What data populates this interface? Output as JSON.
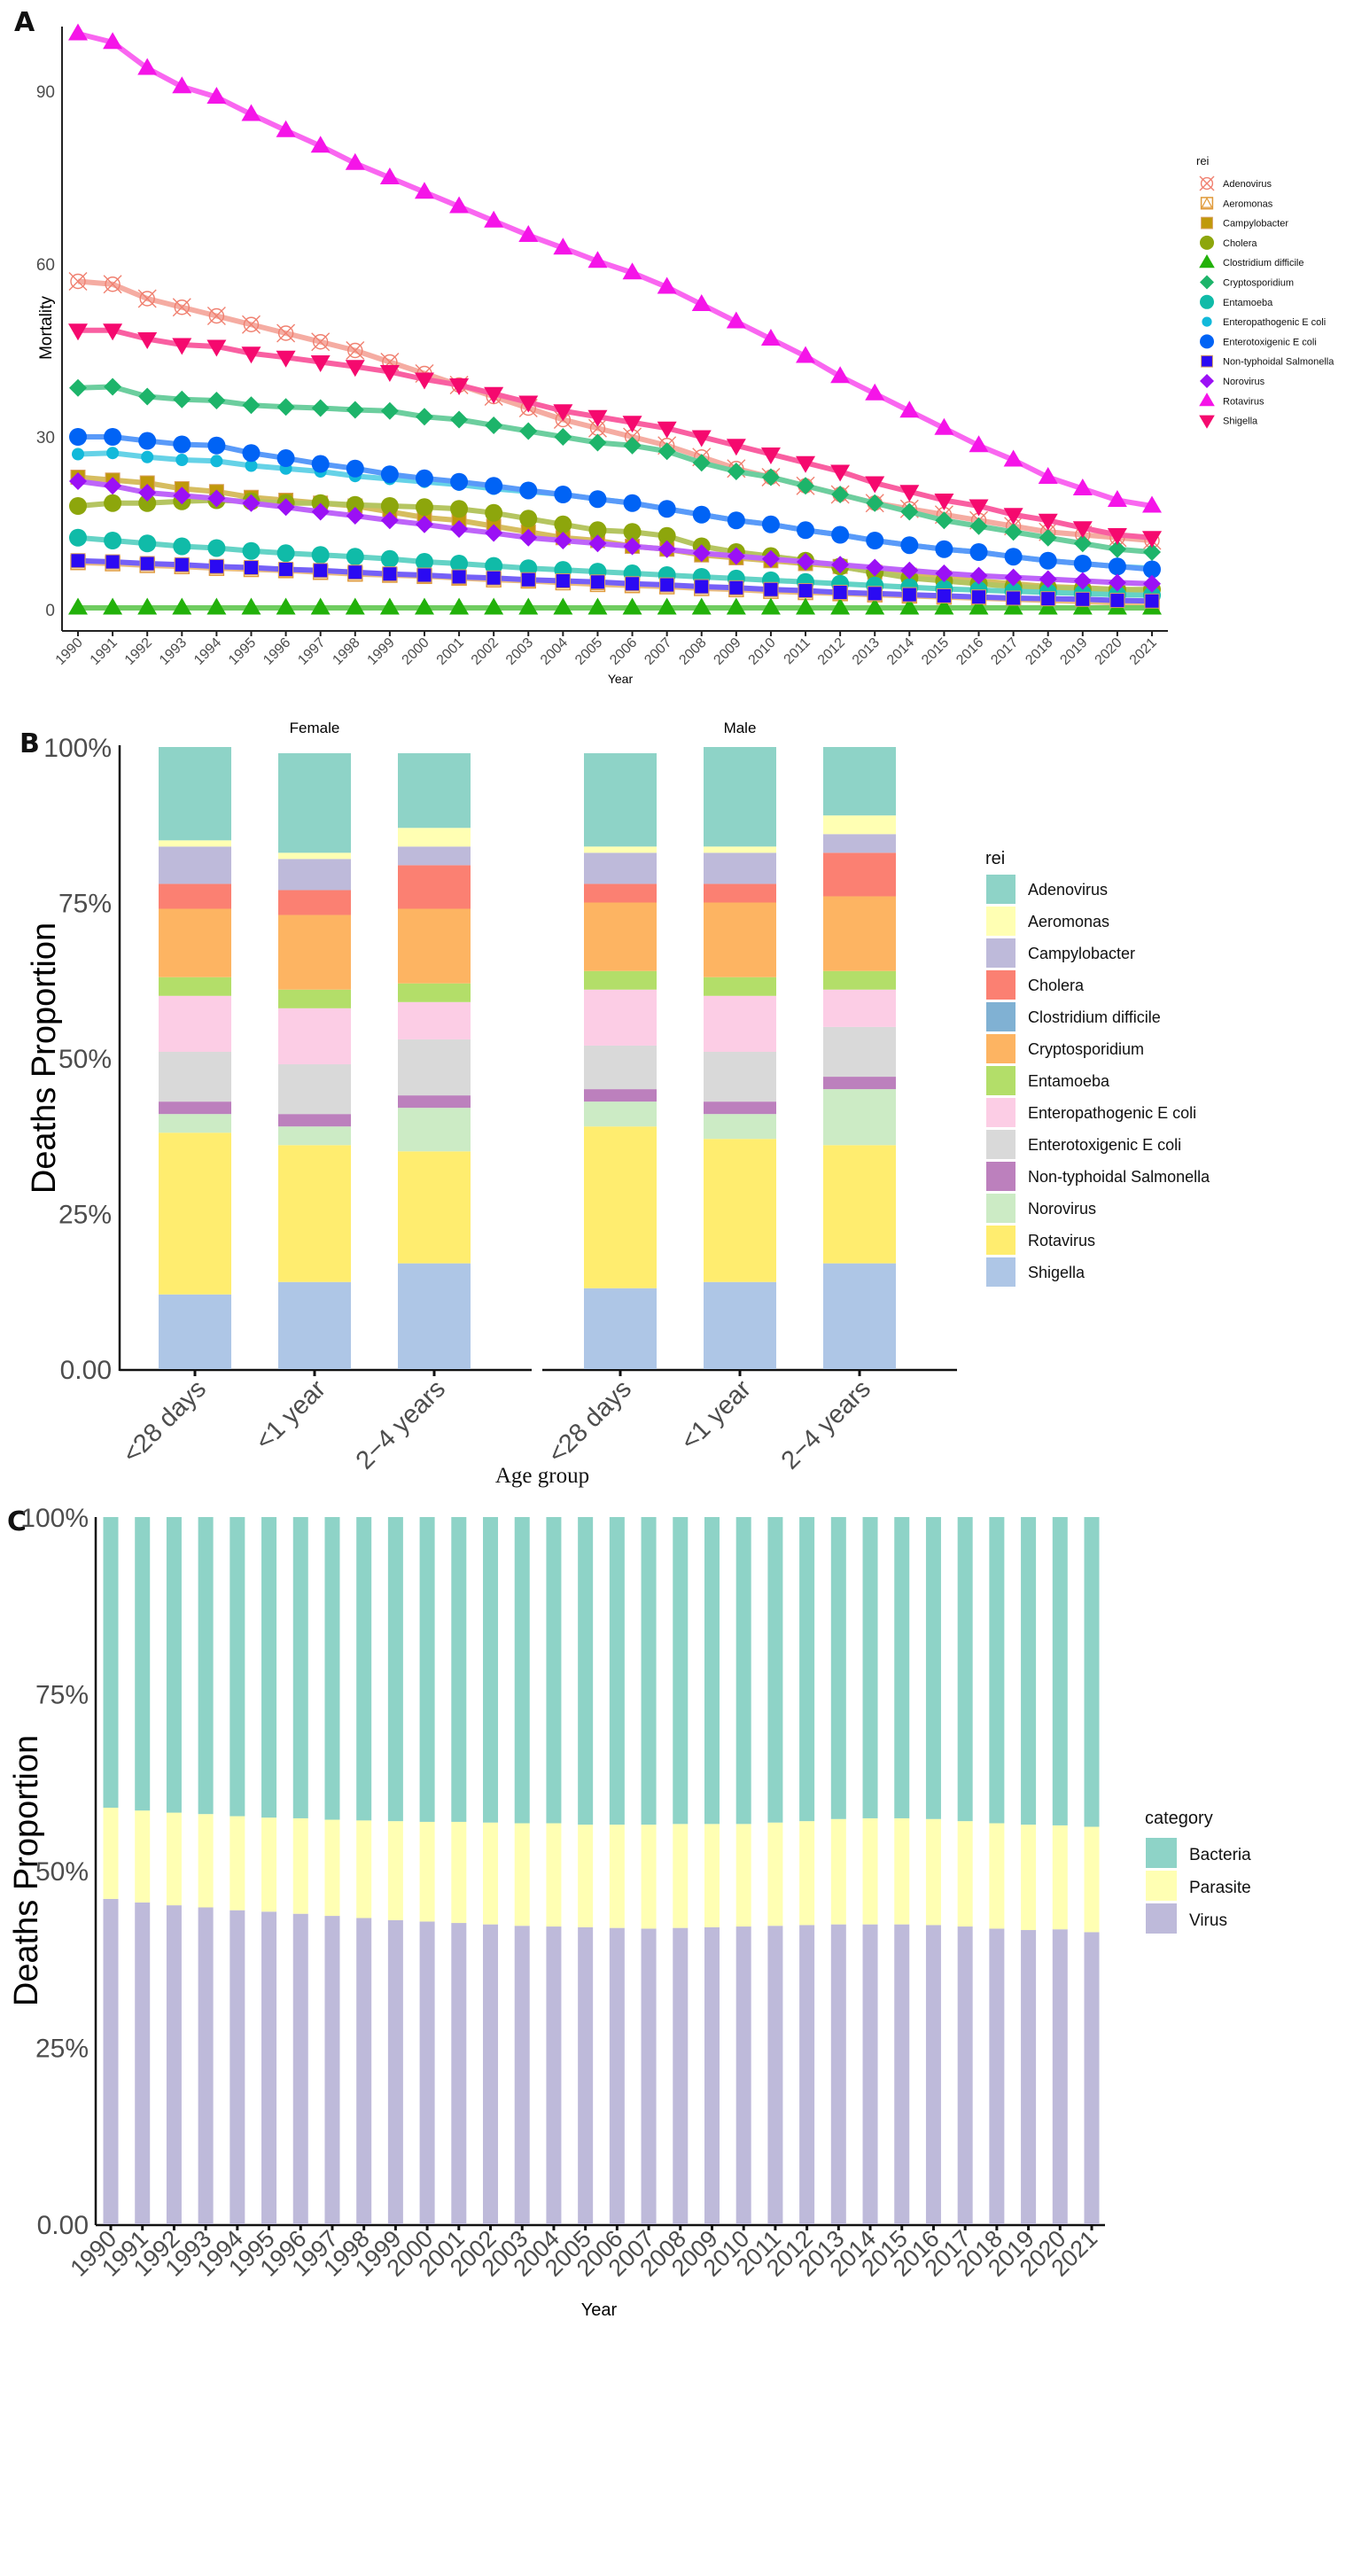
{
  "panels": {
    "A": {
      "letter": "A"
    },
    "B": {
      "letter": "B"
    },
    "C": {
      "letter": "C"
    }
  },
  "chart_data": [
    {
      "id": "A",
      "type": "line",
      "title": "",
      "xlabel": "Year",
      "ylabel": "Mortality",
      "ylim": [
        0,
        102
      ],
      "yticks": [
        0,
        30,
        60,
        90
      ],
      "x": [
        1990,
        1991,
        1992,
        1993,
        1994,
        1995,
        1996,
        1997,
        1998,
        1999,
        2000,
        2001,
        2002,
        2003,
        2004,
        2005,
        2006,
        2007,
        2008,
        2009,
        2010,
        2011,
        2012,
        2013,
        2014,
        2015,
        2016,
        2017,
        2018,
        2019,
        2020,
        2021
      ],
      "legend_title": "rei",
      "legend_position": "right",
      "series": [
        {
          "name": "Adenovirus",
          "color": "#F08070",
          "marker": "circle-x",
          "values": [
            57,
            56.5,
            54,
            52.5,
            51,
            49.5,
            48,
            46.5,
            45,
            43,
            41,
            39,
            37,
            35,
            33,
            31.5,
            30,
            28.5,
            26.5,
            24.5,
            23,
            21.5,
            20,
            18.5,
            17.5,
            16.5,
            15.5,
            14.5,
            13.5,
            13,
            12.5,
            12
          ]
        },
        {
          "name": "Aeromonas",
          "color": "#E09A3A",
          "marker": "square-triangle",
          "values": [
            8.2,
            8,
            7.7,
            7.5,
            7.2,
            7,
            6.8,
            6.5,
            6.2,
            6,
            5.8,
            5.5,
            5.2,
            5,
            4.7,
            4.4,
            4.2,
            4,
            3.7,
            3.5,
            3.2,
            3,
            2.8,
            2.6,
            2.4,
            2.2,
            2,
            1.8,
            1.6,
            1.4,
            1.2,
            1
          ]
        },
        {
          "name": "Campylobacter",
          "color": "#C0990A",
          "marker": "square",
          "values": [
            23,
            22.5,
            22,
            21,
            20.5,
            19.5,
            19,
            18.5,
            18,
            17,
            16,
            15.5,
            14.5,
            13.5,
            12.5,
            12,
            11,
            10.5,
            9.5,
            9,
            8.5,
            8,
            7.5,
            6.5,
            6,
            5.5,
            5,
            4.5,
            4,
            3.8,
            3.5,
            3.2
          ]
        },
        {
          "name": "Cholera",
          "color": "#8DA60C",
          "marker": "circle",
          "values": [
            18,
            18.5,
            18.5,
            18.8,
            19,
            18.8,
            18.5,
            18.5,
            18.2,
            18,
            17.8,
            17.5,
            16.8,
            15.8,
            14.8,
            13.8,
            13.5,
            12.8,
            11,
            10,
            9.3,
            8.5,
            7.5,
            6.5,
            5.5,
            5,
            4.5,
            4,
            3.8,
            3.6,
            3.5,
            3.5
          ]
        },
        {
          "name": "Clostridium difficile",
          "color": "#22B10A",
          "marker": "triangle",
          "values": [
            0.3,
            0.3,
            0.3,
            0.3,
            0.3,
            0.3,
            0.3,
            0.3,
            0.3,
            0.3,
            0.3,
            0.3,
            0.3,
            0.3,
            0.3,
            0.3,
            0.3,
            0.3,
            0.3,
            0.3,
            0.3,
            0.3,
            0.3,
            0.3,
            0.3,
            0.3,
            0.3,
            0.3,
            0.3,
            0.3,
            0.3,
            0.3
          ]
        },
        {
          "name": "Cryptosporidium",
          "color": "#1DB46A",
          "marker": "diamond",
          "values": [
            38.5,
            38.7,
            37,
            36.5,
            36.3,
            35.5,
            35.2,
            35,
            34.7,
            34.5,
            33.5,
            33,
            32,
            31,
            30,
            29,
            28.5,
            27.5,
            25.5,
            24,
            23,
            21.5,
            20,
            18.5,
            17,
            15.5,
            14.5,
            13.5,
            12.5,
            11.5,
            10.5,
            10
          ]
        },
        {
          "name": "Entamoeba",
          "color": "#10BBA8",
          "marker": "circle",
          "values": [
            12.5,
            12,
            11.5,
            11,
            10.7,
            10.2,
            9.8,
            9.5,
            9.2,
            8.8,
            8.3,
            8,
            7.6,
            7.2,
            6.9,
            6.6,
            6.3,
            6,
            5.7,
            5.4,
            5.1,
            4.8,
            4.5,
            4.2,
            3.9,
            3.6,
            3.4,
            3.2,
            3,
            2.8,
            2.6,
            2.5
          ]
        },
        {
          "name": "Enteropathogenic E coli",
          "color": "#12B9DA",
          "marker": "circle-small",
          "values": [
            27,
            27.2,
            26.5,
            26,
            25.8,
            25,
            24.5,
            24,
            23.2,
            22.7,
            22.2,
            21.7,
            21,
            20.5,
            20,
            19.2,
            18.5,
            17.5,
            16.5,
            15.5,
            14.8,
            13.8,
            13,
            12,
            11.2,
            10.5,
            10,
            9.2,
            8.5,
            8,
            7.5,
            7.2
          ]
        },
        {
          "name": "Enterotoxigenic E coli",
          "color": "#0063F5",
          "marker": "circle",
          "values": [
            30,
            30,
            29.3,
            28.7,
            28.5,
            27.2,
            26.3,
            25.3,
            24.5,
            23.5,
            22.8,
            22.2,
            21.5,
            20.7,
            20,
            19.2,
            18.5,
            17.5,
            16.5,
            15.5,
            14.8,
            13.8,
            13,
            12,
            11.2,
            10.5,
            10,
            9.2,
            8.5,
            8,
            7.5,
            7
          ]
        },
        {
          "name": "Non-typhoidal Salmonella",
          "color": "#2B0AF2",
          "marker": "square",
          "values": [
            8.5,
            8.3,
            8,
            7.8,
            7.5,
            7.3,
            7,
            6.8,
            6.5,
            6.2,
            6,
            5.7,
            5.5,
            5.2,
            5,
            4.8,
            4.5,
            4.3,
            4,
            3.8,
            3.5,
            3.3,
            3,
            2.8,
            2.6,
            2.4,
            2.2,
            2,
            1.9,
            1.8,
            1.6,
            1.5
          ]
        },
        {
          "name": "Norovirus",
          "color": "#9B10F5",
          "marker": "diamond",
          "values": [
            22.3,
            21.5,
            20.3,
            19.8,
            19.3,
            18.5,
            17.8,
            17,
            16.3,
            15.5,
            14.8,
            14,
            13.3,
            12.5,
            12,
            11.5,
            11,
            10.5,
            9.8,
            9.3,
            8.8,
            8.3,
            7.8,
            7.3,
            6.8,
            6.3,
            5.9,
            5.6,
            5.3,
            5,
            4.7,
            4.5
          ]
        },
        {
          "name": "Rotavirus",
          "color": "#F514E8",
          "marker": "triangle",
          "values": [
            100,
            98.5,
            94,
            90.8,
            89,
            86,
            83.2,
            80.5,
            77.5,
            75,
            72.5,
            70,
            67.5,
            65,
            62.8,
            60.5,
            58.5,
            56,
            53,
            50,
            47,
            44,
            40.5,
            37.5,
            34.5,
            31.5,
            28.5,
            26,
            23,
            21,
            19,
            18
          ]
        },
        {
          "name": "Shigella",
          "color": "#F5096E",
          "marker": "triangle-down",
          "values": [
            48.5,
            48.5,
            47,
            46,
            45.7,
            44.5,
            43.8,
            43,
            42.2,
            41.3,
            40,
            39,
            37.5,
            36,
            34.5,
            33.5,
            32.5,
            31.5,
            30,
            28.5,
            27,
            25.5,
            24,
            22,
            20.5,
            19,
            18,
            16.5,
            15.5,
            14.2,
            13,
            12.5
          ]
        }
      ]
    },
    {
      "id": "B",
      "type": "bar",
      "stacked": true,
      "title": "",
      "xlabel": "Age group",
      "ylabel": "Deaths Proportion",
      "ylim": [
        0,
        100
      ],
      "yticks": [
        "0.00",
        "25%",
        "50%",
        "75%",
        "100%"
      ],
      "facets": [
        "Female",
        "Male"
      ],
      "categories": [
        "<28 days",
        "<1 year",
        "2−4 years"
      ],
      "legend_title": "rei",
      "legend_position": "right",
      "series": [
        {
          "name": "Adenovirus",
          "color": "#8ED3C7",
          "values": {
            "Female": [
              15,
              16,
              12
            ],
            "Male": [
              15,
              16,
              11
            ]
          }
        },
        {
          "name": "Aeromonas",
          "color": "#FFFFB3",
          "values": {
            "Female": [
              1,
              1,
              3
            ],
            "Male": [
              1,
              1,
              3
            ]
          }
        },
        {
          "name": "Campylobacter",
          "color": "#BEBADA",
          "values": {
            "Female": [
              6,
              5,
              3
            ],
            "Male": [
              5,
              5,
              3
            ]
          }
        },
        {
          "name": "Cholera",
          "color": "#FB8072",
          "values": {
            "Female": [
              4,
              4,
              7
            ],
            "Male": [
              3,
              3,
              7
            ]
          }
        },
        {
          "name": "Clostridium difficile",
          "color": "#80B1D3",
          "values": {
            "Female": [
              0,
              0,
              0
            ],
            "Male": [
              0,
              0,
              0
            ]
          }
        },
        {
          "name": "Cryptosporidium",
          "color": "#FDB462",
          "values": {
            "Female": [
              11,
              12,
              12
            ],
            "Male": [
              11,
              12,
              12
            ]
          }
        },
        {
          "name": "Entamoeba",
          "color": "#B3DE69",
          "values": {
            "Female": [
              3,
              3,
              3
            ],
            "Male": [
              3,
              3,
              3
            ]
          }
        },
        {
          "name": "Enteropathogenic E coli",
          "color": "#FCCDE5",
          "values": {
            "Female": [
              9,
              9,
              6
            ],
            "Male": [
              9,
              9,
              6
            ]
          }
        },
        {
          "name": "Enterotoxigenic E coli",
          "color": "#D9D9D9",
          "values": {
            "Female": [
              8,
              8,
              9
            ],
            "Male": [
              7,
              8,
              8
            ]
          }
        },
        {
          "name": "Non-typhoidal Salmonella",
          "color": "#BC80BD",
          "values": {
            "Female": [
              2,
              2,
              2
            ],
            "Male": [
              2,
              2,
              2
            ]
          }
        },
        {
          "name": "Norovirus",
          "color": "#CCEBC5",
          "values": {
            "Female": [
              3,
              3,
              7
            ],
            "Male": [
              4,
              4,
              9
            ]
          }
        },
        {
          "name": "Rotavirus",
          "color": "#FFED6F",
          "values": {
            "Female": [
              26,
              22,
              18
            ],
            "Male": [
              26,
              23,
              19
            ]
          }
        },
        {
          "name": "Shigella",
          "color": "#AEC6E6",
          "values": {
            "Female": [
              12,
              14,
              17
            ],
            "Male": [
              13,
              14,
              17
            ]
          }
        }
      ]
    },
    {
      "id": "C",
      "type": "bar",
      "stacked": true,
      "title": "",
      "xlabel": "Year",
      "ylabel": "Deaths Proportion",
      "ylim": [
        0,
        100
      ],
      "yticks": [
        "0.00",
        "25%",
        "50%",
        "75%",
        "100%"
      ],
      "categories": [
        "1990",
        "1991",
        "1992",
        "1993",
        "1994",
        "1995",
        "1996",
        "1997",
        "1998",
        "1999",
        "2000",
        "2001",
        "2002",
        "2003",
        "2004",
        "2005",
        "2006",
        "2007",
        "2008",
        "2009",
        "2010",
        "2011",
        "2012",
        "2013",
        "2014",
        "2015",
        "2016",
        "2017",
        "2018",
        "2019",
        "2020",
        "2021"
      ],
      "legend_title": "category",
      "legend_position": "right",
      "series": [
        {
          "name": "Virus",
          "color": "#BEBADA",
          "values": [
            46.0,
            45.5,
            45.1,
            44.8,
            44.4,
            44.2,
            43.9,
            43.6,
            43.3,
            43.0,
            42.8,
            42.6,
            42.4,
            42.2,
            42.1,
            42.0,
            41.9,
            41.8,
            41.9,
            42.0,
            42.1,
            42.2,
            42.3,
            42.4,
            42.4,
            42.4,
            42.3,
            42.1,
            41.8,
            41.6,
            41.7,
            41.3
          ]
        },
        {
          "name": "Parasite",
          "color": "#FFFFB3",
          "values": [
            12.9,
            13.0,
            13.1,
            13.2,
            13.3,
            13.3,
            13.5,
            13.6,
            13.8,
            14.0,
            14.1,
            14.3,
            14.4,
            14.5,
            14.6,
            14.5,
            14.6,
            14.7,
            14.7,
            14.6,
            14.5,
            14.6,
            14.7,
            14.9,
            15.0,
            15.0,
            15.0,
            14.9,
            14.9,
            14.9,
            14.7,
            14.9
          ]
        },
        {
          "name": "Bacteria",
          "color": "#8ED3C7",
          "values": [
            41.1,
            41.5,
            41.8,
            42.0,
            42.3,
            42.5,
            42.6,
            42.8,
            42.9,
            43.0,
            43.1,
            43.1,
            43.2,
            43.3,
            43.3,
            43.5,
            43.5,
            43.5,
            43.4,
            43.4,
            43.4,
            43.2,
            43.0,
            42.7,
            42.6,
            42.6,
            42.7,
            43.0,
            43.3,
            43.5,
            43.6,
            43.8
          ]
        }
      ]
    }
  ]
}
